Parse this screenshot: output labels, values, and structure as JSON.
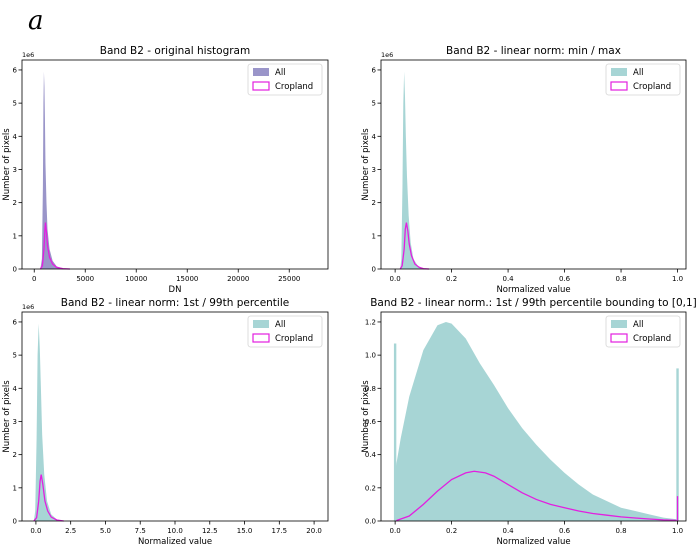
{
  "panel_letter": "a",
  "colors": {
    "all_blue": "#9a95c9",
    "all_teal": "#a7d5d5",
    "cropland": "#e21fe0",
    "axes": "#000000"
  },
  "chart_data": [
    {
      "type": "histogram",
      "title": "Band B2 - original histogram",
      "xlabel": "DN",
      "ylabel": "Number of pixels",
      "y_multiplier": "1e6",
      "xlim": [
        -1200,
        28800
      ],
      "ylim": [
        0,
        6.3
      ],
      "xticks": [
        0,
        5000,
        10000,
        15000,
        20000,
        25000
      ],
      "xtick_labels": [
        "0",
        "5000",
        "10000",
        "15000",
        "20000",
        "25000"
      ],
      "yticks": [
        0,
        1,
        2,
        3,
        4,
        5,
        6
      ],
      "ytick_labels": [
        "0",
        "1",
        "2",
        "3",
        "4",
        "5",
        "6"
      ],
      "legend": {
        "position": "top-right",
        "entries": [
          "All",
          "Cropland"
        ]
      },
      "all_color": "#9a95c9",
      "series": [
        {
          "name": "All",
          "style": "filled",
          "x": [
            600,
            750,
            850,
            900,
            950,
            1000,
            1050,
            1100,
            1200,
            1300,
            1500,
            1800,
            2200,
            2800,
            3500
          ],
          "y": [
            0,
            0.3,
            2.5,
            5.0,
            5.95,
            5.5,
            4.5,
            3.2,
            2.0,
            1.2,
            0.6,
            0.25,
            0.08,
            0.02,
            0
          ]
        },
        {
          "name": "Cropland",
          "style": "line",
          "x": [
            600,
            800,
            950,
            1050,
            1100,
            1200,
            1300,
            1500,
            1800,
            2200,
            2800,
            3500
          ],
          "y": [
            0,
            0.1,
            0.6,
            1.2,
            1.4,
            1.1,
            0.7,
            0.35,
            0.15,
            0.05,
            0.01,
            0
          ]
        }
      ]
    },
    {
      "type": "histogram",
      "title": "Band B2 - linear norm: min / max",
      "xlabel": "Normalized value",
      "ylabel": "Number of pixels",
      "y_multiplier": "1e6",
      "xlim": [
        -0.05,
        1.03
      ],
      "ylim": [
        0,
        6.3
      ],
      "xticks": [
        0,
        0.2,
        0.4,
        0.6,
        0.8,
        1.0
      ],
      "xtick_labels": [
        "0.0",
        "0.2",
        "0.4",
        "0.6",
        "0.8",
        "1.0"
      ],
      "yticks": [
        0,
        1,
        2,
        3,
        4,
        5,
        6
      ],
      "ytick_labels": [
        "0",
        "1",
        "2",
        "3",
        "4",
        "5",
        "6"
      ],
      "legend": {
        "position": "top-right",
        "entries": [
          "All",
          "Cropland"
        ]
      },
      "all_color": "#a7d5d5",
      "series": [
        {
          "name": "All",
          "style": "filled",
          "x": [
            0.018,
            0.022,
            0.026,
            0.029,
            0.032,
            0.035,
            0.038,
            0.042,
            0.048,
            0.055,
            0.065,
            0.08,
            0.1,
            0.12
          ],
          "y": [
            0,
            0.3,
            2.5,
            5.0,
            5.95,
            5.2,
            4.0,
            2.8,
            1.6,
            0.8,
            0.3,
            0.1,
            0.02,
            0
          ]
        },
        {
          "name": "Cropland",
          "style": "line",
          "x": [
            0.018,
            0.025,
            0.032,
            0.036,
            0.04,
            0.045,
            0.05,
            0.058,
            0.07,
            0.085,
            0.1,
            0.12
          ],
          "y": [
            0,
            0.1,
            0.6,
            1.2,
            1.4,
            1.15,
            0.75,
            0.4,
            0.15,
            0.05,
            0.01,
            0
          ]
        }
      ]
    },
    {
      "type": "histogram",
      "title": "Band B2 - linear norm: 1st / 99th percentile",
      "xlabel": "Normalized value",
      "ylabel": "Number of pixels",
      "y_multiplier": "1e6",
      "xlim": [
        -1,
        21
      ],
      "ylim": [
        0,
        6.3
      ],
      "xticks": [
        0,
        2.5,
        5,
        7.5,
        10,
        12.5,
        15,
        17.5,
        20
      ],
      "xtick_labels": [
        "0.0",
        "2.5",
        "5.0",
        "7.5",
        "10.0",
        "12.5",
        "15.0",
        "17.5",
        "20.0"
      ],
      "yticks": [
        0,
        1,
        2,
        3,
        4,
        5,
        6
      ],
      "ytick_labels": [
        "0",
        "1",
        "2",
        "3",
        "4",
        "5",
        "6"
      ],
      "legend": {
        "position": "top-right",
        "entries": [
          "All",
          "Cropland"
        ]
      },
      "all_color": "#a7d5d5",
      "series": [
        {
          "name": "All",
          "style": "filled",
          "x": [
            -0.15,
            -0.05,
            0.05,
            0.12,
            0.2,
            0.28,
            0.36,
            0.45,
            0.6,
            0.8,
            1.1,
            1.5,
            2.0
          ],
          "y": [
            0,
            0.3,
            2.5,
            5.0,
            5.95,
            5.2,
            4.0,
            2.6,
            1.4,
            0.6,
            0.2,
            0.05,
            0
          ]
        },
        {
          "name": "Cropland",
          "style": "line",
          "x": [
            -0.15,
            0.05,
            0.2,
            0.3,
            0.38,
            0.5,
            0.65,
            0.85,
            1.1,
            1.5,
            2.0
          ],
          "y": [
            0,
            0.1,
            0.6,
            1.2,
            1.4,
            1.1,
            0.6,
            0.3,
            0.12,
            0.03,
            0
          ]
        }
      ]
    },
    {
      "type": "histogram",
      "title": "Band B2 - linear norm.: 1st / 99th percentile bounding to [0,1]",
      "xlabel": "Normalized value",
      "ylabel": "Number of pixels",
      "y_multiplier": "",
      "xlim": [
        -0.05,
        1.03
      ],
      "ylim": [
        0,
        1.26
      ],
      "xticks": [
        0,
        0.2,
        0.4,
        0.6,
        0.8,
        1.0
      ],
      "xtick_labels": [
        "0.0",
        "0.2",
        "0.4",
        "0.6",
        "0.8",
        "1.0"
      ],
      "yticks": [
        0,
        0.2,
        0.4,
        0.6,
        0.8,
        1.0,
        1.2
      ],
      "ytick_labels": [
        "0.0",
        "0.2",
        "0.4",
        "0.6",
        "0.8",
        "1.0",
        "1.2"
      ],
      "legend": {
        "position": "top-right",
        "entries": [
          "All",
          "Cropland"
        ]
      },
      "all_color": "#a7d5d5",
      "spikes_all": [
        {
          "x": 0.0,
          "y": 1.07
        },
        {
          "x": 1.0,
          "y": 0.92
        }
      ],
      "spike_cropland": {
        "x": 1.0,
        "y": 0.15
      },
      "series": [
        {
          "name": "All",
          "style": "filled",
          "x": [
            0.0,
            0.02,
            0.05,
            0.1,
            0.15,
            0.18,
            0.2,
            0.25,
            0.3,
            0.35,
            0.4,
            0.45,
            0.5,
            0.55,
            0.6,
            0.65,
            0.7,
            0.75,
            0.8,
            0.85,
            0.9,
            0.95,
            1.0
          ],
          "y": [
            0.3,
            0.5,
            0.75,
            1.03,
            1.18,
            1.2,
            1.19,
            1.1,
            0.95,
            0.82,
            0.68,
            0.56,
            0.46,
            0.37,
            0.29,
            0.22,
            0.16,
            0.12,
            0.08,
            0.06,
            0.04,
            0.02,
            0.01
          ]
        },
        {
          "name": "Cropland",
          "style": "line",
          "x": [
            0.0,
            0.05,
            0.1,
            0.15,
            0.2,
            0.25,
            0.28,
            0.32,
            0.35,
            0.4,
            0.45,
            0.5,
            0.55,
            0.6,
            0.65,
            0.7,
            0.75,
            0.8,
            0.85,
            0.9,
            0.95,
            1.0
          ],
          "y": [
            0.0,
            0.03,
            0.1,
            0.18,
            0.25,
            0.29,
            0.3,
            0.29,
            0.27,
            0.22,
            0.17,
            0.13,
            0.1,
            0.08,
            0.06,
            0.045,
            0.035,
            0.025,
            0.018,
            0.012,
            0.007,
            0.004
          ]
        }
      ]
    }
  ]
}
